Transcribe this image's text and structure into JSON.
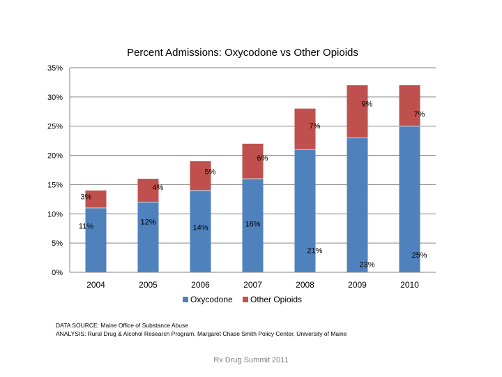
{
  "chart_data": {
    "type": "bar",
    "stacked": true,
    "title": "Percent Admissions: Oxycodone vs Other Opioids",
    "xlabel": "",
    "ylabel": "",
    "categories": [
      "2004",
      "2005",
      "2006",
      "2007",
      "2008",
      "2009",
      "2010"
    ],
    "series": [
      {
        "name": "Oxycodone",
        "values": [
          11,
          12,
          14,
          16,
          21,
          23,
          25
        ],
        "labels": [
          "11%",
          "12%",
          "14%",
          "16%",
          "21%",
          "23%",
          "25%"
        ]
      },
      {
        "name": "Other Opioids",
        "values": [
          3,
          4,
          5,
          6,
          7,
          9,
          7
        ],
        "labels": [
          "3%",
          "4%",
          "5%",
          "6%",
          "7%",
          "9%",
          "7%"
        ]
      }
    ],
    "ylim": [
      0,
      35
    ],
    "yticks": [
      0,
      5,
      10,
      15,
      20,
      25,
      30,
      35
    ],
    "ytick_labels": [
      "0%",
      "5%",
      "10%",
      "15%",
      "20%",
      "25%",
      "30%",
      "35%"
    ],
    "grid": true,
    "legend": "bottom",
    "colors": {
      "Oxycodone": "#4f81bd",
      "Other Opioids": "#c0504d"
    }
  },
  "notes": {
    "source": "DATA SOURCE: Maine Office of Substance Abuse",
    "analysis": "ANALYSIS: Rural Drug & Alcohol Research Program, Margaret Chase Smith Policy Center, University of Maine"
  },
  "footer": "Rx Drug Summit 2011"
}
